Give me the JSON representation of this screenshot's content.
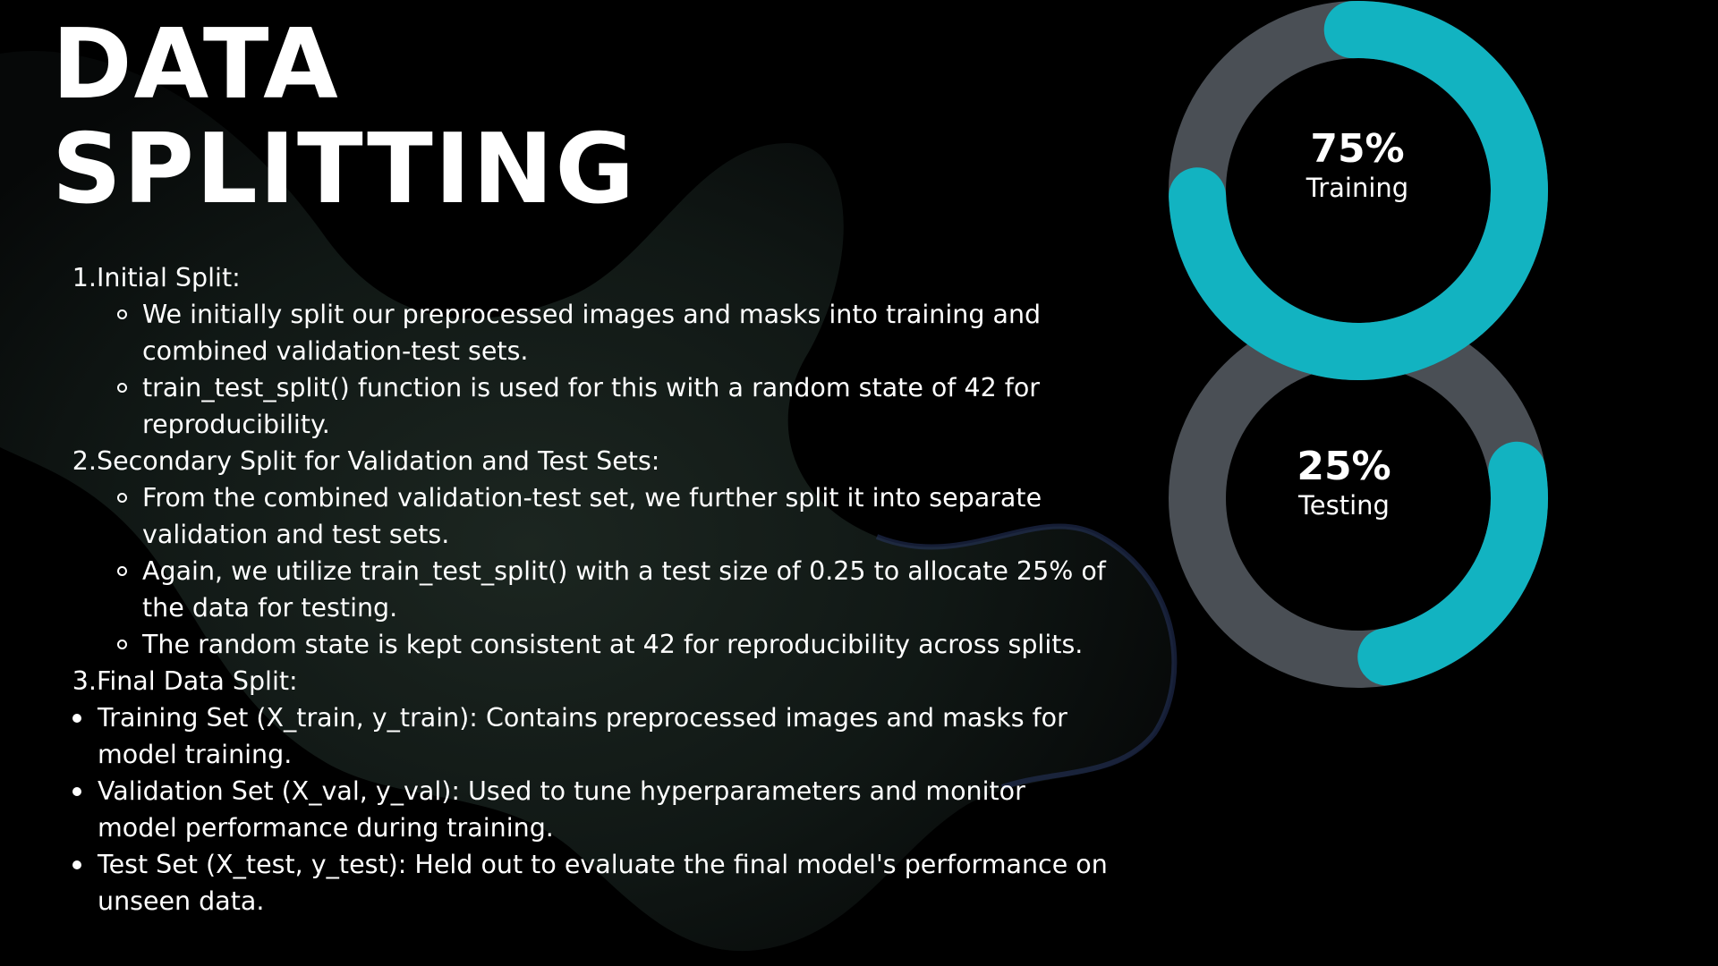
{
  "slide": {
    "title_line1": "DATA",
    "title_line2": "SPLITTING",
    "background_color": "#000000",
    "text_color": "#ffffff"
  },
  "steps": [
    {
      "number": "1.",
      "label": "Initial Split:",
      "bullets": [
        "We initially split our preprocessed images and masks into training and combined validation-test sets.",
        "train_test_split() function is used for this with a random state of 42 for reproducibility."
      ]
    },
    {
      "number": "2.",
      "label": "Secondary Split for Validation and Test Sets:",
      "bullets": [
        "From the combined validation-test set, we further split it into separate validation and test sets.",
        "Again, we utilize train_test_split() with a test size of 0.25 to allocate 25% of the data for testing.",
        "The random state is kept consistent at 42 for reproducibility across splits."
      ]
    },
    {
      "number": "3.",
      "label": "Final Data Split:",
      "bullets": []
    }
  ],
  "final_split": [
    "Training Set (X_train, y_train): Contains preprocessed images and masks for model training.",
    "Validation Set (X_val, y_val): Used to tune hyperparameters and monitor model performance during training.",
    "Test Set (X_test, y_test): Held out to evaluate the final model's performance on unseen data."
  ],
  "chart_data": {
    "type": "pie",
    "style": "two stacked donut rings",
    "ring_color": "#12b3c1",
    "track_color": "#4a4f55",
    "series": [
      {
        "name": "Training",
        "value": 75,
        "label": "75%"
      },
      {
        "name": "Testing",
        "value": 25,
        "label": "25%"
      }
    ]
  }
}
